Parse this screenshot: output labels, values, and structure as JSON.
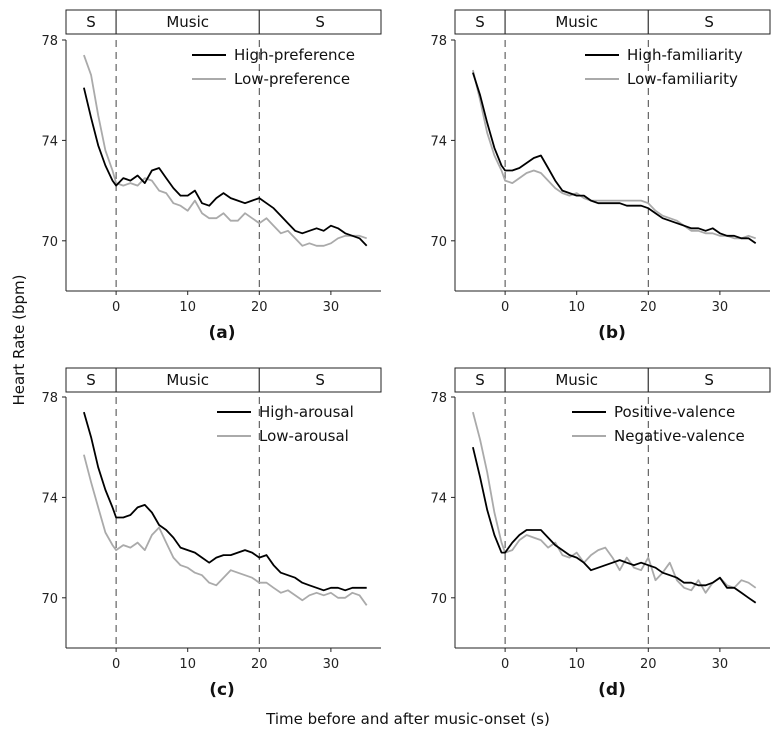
{
  "figure": {
    "ylabel": "Heart Rate (bpm)",
    "xlabel": "Time before and after music-onset (s)"
  },
  "phase_labels": [
    "S",
    "Music",
    "S"
  ],
  "chart_data": [
    {
      "type": "line",
      "panel_label": "(a)",
      "xlim": [
        -7,
        37
      ],
      "ylim": [
        68,
        78
      ],
      "xticks": [
        0,
        10,
        20,
        30
      ],
      "yticks": [
        70,
        74,
        78
      ],
      "phases": [
        [
          -7,
          0
        ],
        [
          0,
          20
        ],
        [
          20,
          37
        ]
      ],
      "markers": [
        0,
        20
      ],
      "legend_position": "top-right",
      "series": [
        {
          "name": "High-preference",
          "color": "#000000",
          "x": [
            -4.5,
            -3.5,
            -2.5,
            -1.5,
            -0.5,
            0,
            1,
            2,
            3,
            4,
            5,
            6,
            7,
            8,
            9,
            10,
            11,
            12,
            13,
            14,
            15,
            16,
            17,
            18,
            19,
            20,
            21,
            22,
            23,
            24,
            25,
            26,
            27,
            28,
            29,
            30,
            31,
            32,
            33,
            34,
            35
          ],
          "y": [
            76.1,
            74.9,
            73.8,
            73.0,
            72.4,
            72.2,
            72.5,
            72.4,
            72.6,
            72.3,
            72.8,
            72.9,
            72.5,
            72.1,
            71.8,
            71.8,
            72.0,
            71.5,
            71.4,
            71.7,
            71.9,
            71.7,
            71.6,
            71.5,
            71.6,
            71.7,
            71.5,
            71.3,
            71.0,
            70.7,
            70.4,
            70.3,
            70.4,
            70.5,
            70.4,
            70.6,
            70.5,
            70.3,
            70.2,
            70.1,
            69.8
          ]
        },
        {
          "name": "Low-preference",
          "color": "#aaaaaa",
          "x": [
            -4.5,
            -3.5,
            -2.5,
            -1.5,
            -0.5,
            0,
            1,
            2,
            3,
            4,
            5,
            6,
            7,
            8,
            9,
            10,
            11,
            12,
            13,
            14,
            15,
            16,
            17,
            18,
            19,
            20,
            21,
            22,
            23,
            24,
            25,
            26,
            27,
            28,
            29,
            30,
            31,
            32,
            33,
            34,
            35
          ],
          "y": [
            77.4,
            76.6,
            75.0,
            73.6,
            72.8,
            72.3,
            72.2,
            72.3,
            72.2,
            72.5,
            72.4,
            72.0,
            71.9,
            71.5,
            71.4,
            71.2,
            71.6,
            71.1,
            70.9,
            70.9,
            71.1,
            70.8,
            70.8,
            71.1,
            70.9,
            70.7,
            70.9,
            70.6,
            70.3,
            70.4,
            70.1,
            69.8,
            69.9,
            69.8,
            69.8,
            69.9,
            70.1,
            70.2,
            70.2,
            70.2,
            70.1
          ]
        }
      ]
    },
    {
      "type": "line",
      "panel_label": "(b)",
      "xlim": [
        -7,
        37
      ],
      "ylim": [
        68,
        78
      ],
      "xticks": [
        0,
        10,
        20,
        30
      ],
      "yticks": [
        70,
        74,
        78
      ],
      "phases": [
        [
          -7,
          0
        ],
        [
          0,
          20
        ],
        [
          20,
          37
        ]
      ],
      "markers": [
        0,
        20
      ],
      "legend_position": "top-right",
      "series": [
        {
          "name": "High-familiarity",
          "color": "#000000",
          "x": [
            -4.5,
            -3.5,
            -2.5,
            -1.5,
            -0.5,
            0,
            1,
            2,
            3,
            4,
            5,
            6,
            7,
            8,
            9,
            10,
            11,
            12,
            13,
            14,
            15,
            16,
            17,
            18,
            19,
            20,
            21,
            22,
            23,
            24,
            25,
            26,
            27,
            28,
            29,
            30,
            31,
            32,
            33,
            34,
            35
          ],
          "y": [
            76.7,
            75.8,
            74.7,
            73.7,
            73.0,
            72.8,
            72.8,
            72.9,
            73.1,
            73.3,
            73.4,
            72.9,
            72.4,
            72.0,
            71.9,
            71.8,
            71.8,
            71.6,
            71.5,
            71.5,
            71.5,
            71.5,
            71.4,
            71.4,
            71.4,
            71.3,
            71.1,
            70.9,
            70.8,
            70.7,
            70.6,
            70.5,
            70.5,
            70.4,
            70.5,
            70.3,
            70.2,
            70.2,
            70.1,
            70.1,
            69.9
          ]
        },
        {
          "name": "Low-familiarity",
          "color": "#aaaaaa",
          "x": [
            -4.5,
            -3.5,
            -2.5,
            -1.5,
            -0.5,
            0,
            1,
            2,
            3,
            4,
            5,
            6,
            7,
            8,
            9,
            10,
            11,
            12,
            13,
            14,
            15,
            16,
            17,
            18,
            19,
            20,
            21,
            22,
            23,
            24,
            25,
            26,
            27,
            28,
            29,
            30,
            31,
            32,
            33,
            34,
            35
          ],
          "y": [
            76.8,
            75.6,
            74.3,
            73.4,
            72.8,
            72.4,
            72.3,
            72.5,
            72.7,
            72.8,
            72.7,
            72.4,
            72.1,
            71.9,
            71.8,
            71.9,
            71.7,
            71.6,
            71.6,
            71.6,
            71.6,
            71.6,
            71.6,
            71.6,
            71.6,
            71.5,
            71.2,
            71.0,
            70.9,
            70.8,
            70.6,
            70.4,
            70.4,
            70.3,
            70.3,
            70.2,
            70.2,
            70.1,
            70.1,
            70.2,
            70.1
          ]
        }
      ]
    },
    {
      "type": "line",
      "panel_label": "(c)",
      "xlim": [
        -7,
        37
      ],
      "ylim": [
        68,
        78
      ],
      "xticks": [
        0,
        10,
        20,
        30
      ],
      "yticks": [
        70,
        74,
        78
      ],
      "phases": [
        [
          -7,
          0
        ],
        [
          0,
          20
        ],
        [
          20,
          37
        ]
      ],
      "markers": [
        0,
        20
      ],
      "legend_position": "top-right",
      "series": [
        {
          "name": "High-arousal",
          "color": "#000000",
          "x": [
            -4.5,
            -3.5,
            -2.5,
            -1.5,
            -0.5,
            0,
            1,
            2,
            3,
            4,
            5,
            6,
            7,
            8,
            9,
            10,
            11,
            12,
            13,
            14,
            15,
            16,
            17,
            18,
            19,
            20,
            21,
            22,
            23,
            24,
            25,
            26,
            27,
            28,
            29,
            30,
            31,
            32,
            33,
            34,
            35
          ],
          "y": [
            77.4,
            76.4,
            75.2,
            74.3,
            73.6,
            73.2,
            73.2,
            73.3,
            73.6,
            73.7,
            73.4,
            72.9,
            72.7,
            72.4,
            72.0,
            71.9,
            71.8,
            71.6,
            71.4,
            71.6,
            71.7,
            71.7,
            71.8,
            71.9,
            71.8,
            71.6,
            71.7,
            71.3,
            71.0,
            70.9,
            70.8,
            70.6,
            70.5,
            70.4,
            70.3,
            70.4,
            70.4,
            70.3,
            70.4,
            70.4,
            70.4
          ]
        },
        {
          "name": "Low-arousal",
          "color": "#aaaaaa",
          "x": [
            -4.5,
            -3.5,
            -2.5,
            -1.5,
            -0.5,
            0,
            1,
            2,
            3,
            4,
            5,
            6,
            7,
            8,
            9,
            10,
            11,
            12,
            13,
            14,
            15,
            16,
            17,
            18,
            19,
            20,
            21,
            22,
            23,
            24,
            25,
            26,
            27,
            28,
            29,
            30,
            31,
            32,
            33,
            34,
            35
          ],
          "y": [
            75.7,
            74.6,
            73.6,
            72.6,
            72.1,
            71.9,
            72.1,
            72.0,
            72.2,
            71.9,
            72.5,
            72.8,
            72.2,
            71.6,
            71.3,
            71.2,
            71.0,
            70.9,
            70.6,
            70.5,
            70.8,
            71.1,
            71.0,
            70.9,
            70.8,
            70.6,
            70.6,
            70.4,
            70.2,
            70.3,
            70.1,
            69.9,
            70.1,
            70.2,
            70.1,
            70.2,
            70.0,
            70.0,
            70.2,
            70.1,
            69.7
          ]
        }
      ]
    },
    {
      "type": "line",
      "panel_label": "(d)",
      "xlim": [
        -7,
        37
      ],
      "ylim": [
        68,
        78
      ],
      "xticks": [
        0,
        10,
        20,
        30
      ],
      "yticks": [
        70,
        74,
        78
      ],
      "phases": [
        [
          -7,
          0
        ],
        [
          0,
          20
        ],
        [
          20,
          37
        ]
      ],
      "markers": [
        0,
        20
      ],
      "legend_position": "top-right",
      "series": [
        {
          "name": "Positive-valence",
          "color": "#000000",
          "x": [
            -4.5,
            -3.5,
            -2.5,
            -1.5,
            -0.5,
            0,
            1,
            2,
            3,
            4,
            5,
            6,
            7,
            8,
            9,
            10,
            11,
            12,
            13,
            14,
            15,
            16,
            17,
            18,
            19,
            20,
            21,
            22,
            23,
            24,
            25,
            26,
            27,
            28,
            29,
            30,
            31,
            32,
            33,
            34,
            35
          ],
          "y": [
            76.0,
            74.8,
            73.5,
            72.5,
            71.8,
            71.8,
            72.2,
            72.5,
            72.7,
            72.7,
            72.7,
            72.4,
            72.1,
            71.9,
            71.7,
            71.6,
            71.4,
            71.1,
            71.2,
            71.3,
            71.4,
            71.5,
            71.4,
            71.3,
            71.4,
            71.3,
            71.2,
            71.0,
            70.9,
            70.8,
            70.6,
            70.6,
            70.5,
            70.5,
            70.6,
            70.8,
            70.4,
            70.4,
            70.2,
            70.0,
            69.8
          ]
        },
        {
          "name": "Negative-valence",
          "color": "#aaaaaa",
          "x": [
            -4.5,
            -3.5,
            -2.5,
            -1.5,
            -0.5,
            0,
            1,
            2,
            3,
            4,
            5,
            6,
            7,
            8,
            9,
            10,
            11,
            12,
            13,
            14,
            15,
            16,
            17,
            18,
            19,
            20,
            21,
            22,
            23,
            24,
            25,
            26,
            27,
            28,
            29,
            30,
            31,
            32,
            33,
            34,
            35
          ],
          "y": [
            77.4,
            76.3,
            75.0,
            73.4,
            72.2,
            71.8,
            71.9,
            72.3,
            72.5,
            72.4,
            72.3,
            72.0,
            72.2,
            71.7,
            71.6,
            71.8,
            71.4,
            71.7,
            71.9,
            72.0,
            71.6,
            71.1,
            71.6,
            71.2,
            71.1,
            71.6,
            70.7,
            71.0,
            71.4,
            70.7,
            70.4,
            70.3,
            70.7,
            70.2,
            70.6,
            70.8,
            70.5,
            70.4,
            70.7,
            70.6,
            70.4
          ]
        }
      ]
    }
  ]
}
